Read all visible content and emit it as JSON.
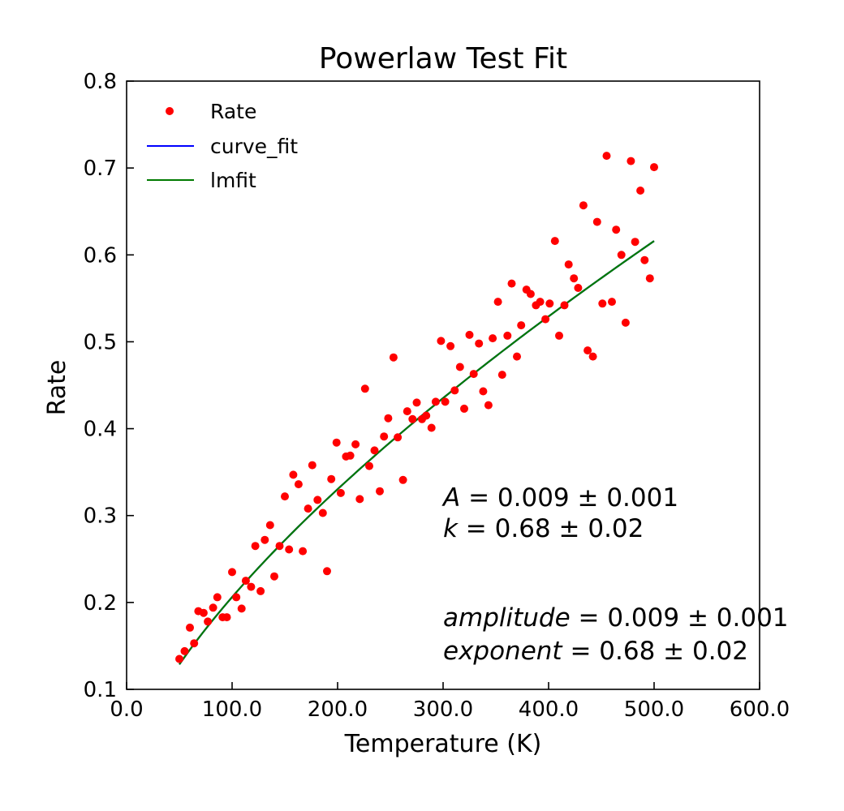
{
  "chart_data": {
    "type": "scatter",
    "title": "Powerlaw Test Fit",
    "xlabel": "Temperature (K)",
    "ylabel": "Rate",
    "xlim": [
      0,
      600
    ],
    "ylim": [
      0.1,
      0.8
    ],
    "grid": false,
    "legend_position": "top-left",
    "x_ticks": [
      "0.0",
      "100.0",
      "200.0",
      "300.0",
      "400.0",
      "500.0",
      "600.0"
    ],
    "y_ticks": [
      "0.1",
      "0.2",
      "0.3",
      "0.4",
      "0.5",
      "0.6",
      "0.7",
      "0.8"
    ],
    "legend": [
      "Rate",
      "curve_fit",
      "lmfit"
    ],
    "colors": {
      "points": "#ff0000",
      "curve_fit": "#0000ff",
      "lmfit": "#007a00"
    },
    "series": [
      {
        "name": "Rate",
        "kind": "points",
        "points": [
          [
            50,
            0.135
          ],
          [
            55,
            0.144
          ],
          [
            60,
            0.171
          ],
          [
            64,
            0.153
          ],
          [
            68,
            0.19
          ],
          [
            73,
            0.188
          ],
          [
            77,
            0.178
          ],
          [
            82,
            0.194
          ],
          [
            86,
            0.206
          ],
          [
            91,
            0.183
          ],
          [
            95,
            0.183
          ],
          [
            100,
            0.235
          ],
          [
            104,
            0.206
          ],
          [
            109,
            0.193
          ],
          [
            113,
            0.225
          ],
          [
            118,
            0.218
          ],
          [
            122,
            0.265
          ],
          [
            127,
            0.213
          ],
          [
            131,
            0.272
          ],
          [
            136,
            0.289
          ],
          [
            140,
            0.23
          ],
          [
            145,
            0.265
          ],
          [
            150,
            0.322
          ],
          [
            154,
            0.261
          ],
          [
            158,
            0.347
          ],
          [
            163,
            0.336
          ],
          [
            167,
            0.259
          ],
          [
            172,
            0.308
          ],
          [
            176,
            0.358
          ],
          [
            181,
            0.318
          ],
          [
            186,
            0.303
          ],
          [
            190,
            0.236
          ],
          [
            194,
            0.342
          ],
          [
            199,
            0.384
          ],
          [
            203,
            0.326
          ],
          [
            208,
            0.368
          ],
          [
            212,
            0.369
          ],
          [
            217,
            0.382
          ],
          [
            221,
            0.319
          ],
          [
            226,
            0.446
          ],
          [
            230,
            0.357
          ],
          [
            235,
            0.375
          ],
          [
            240,
            0.328
          ],
          [
            244,
            0.391
          ],
          [
            248,
            0.412
          ],
          [
            253,
            0.482
          ],
          [
            257,
            0.39
          ],
          [
            262,
            0.341
          ],
          [
            266,
            0.42
          ],
          [
            271,
            0.411
          ],
          [
            275,
            0.43
          ],
          [
            280,
            0.411
          ],
          [
            284,
            0.415
          ],
          [
            289,
            0.401
          ],
          [
            293,
            0.431
          ],
          [
            298,
            0.501
          ],
          [
            302,
            0.431
          ],
          [
            307,
            0.495
          ],
          [
            311,
            0.444
          ],
          [
            316,
            0.471
          ],
          [
            320,
            0.423
          ],
          [
            325,
            0.508
          ],
          [
            329,
            0.463
          ],
          [
            334,
            0.498
          ],
          [
            338,
            0.443
          ],
          [
            343,
            0.427
          ],
          [
            347,
            0.504
          ],
          [
            352,
            0.546
          ],
          [
            356,
            0.462
          ],
          [
            361,
            0.507
          ],
          [
            365,
            0.567
          ],
          [
            370,
            0.483
          ],
          [
            374,
            0.519
          ],
          [
            379,
            0.56
          ],
          [
            383,
            0.555
          ],
          [
            388,
            0.542
          ],
          [
            392,
            0.546
          ],
          [
            397,
            0.526
          ],
          [
            401,
            0.544
          ],
          [
            406,
            0.616
          ],
          [
            410,
            0.507
          ],
          [
            415,
            0.542
          ],
          [
            419,
            0.589
          ],
          [
            424,
            0.573
          ],
          [
            428,
            0.562
          ],
          [
            433,
            0.657
          ],
          [
            437,
            0.49
          ],
          [
            442,
            0.483
          ],
          [
            446,
            0.638
          ],
          [
            451,
            0.544
          ],
          [
            455,
            0.714
          ],
          [
            460,
            0.546
          ],
          [
            464,
            0.629
          ],
          [
            469,
            0.6
          ],
          [
            473,
            0.522
          ],
          [
            478,
            0.708
          ],
          [
            482,
            0.615
          ],
          [
            487,
            0.674
          ],
          [
            491,
            0.594
          ],
          [
            496,
            0.573
          ],
          [
            500,
            0.701
          ]
        ]
      },
      {
        "name": "curve_fit",
        "kind": "line",
        "A": 0.009,
        "k": 0.68,
        "x_range": [
          50,
          500
        ]
      },
      {
        "name": "lmfit",
        "kind": "line",
        "A": 0.009,
        "k": 0.68,
        "x_range": [
          50,
          500
        ]
      }
    ],
    "annotations": {
      "fit1_line1": {
        "name": "A",
        "value": " = 0.009 ± 0.001"
      },
      "fit1_line2": {
        "name": "k",
        "value": " = 0.68 ± 0.02"
      },
      "fit2_line1": {
        "name": "amplitude",
        "value": " = 0.009 ± 0.001"
      },
      "fit2_line2": {
        "name": "exponent",
        "value": " = 0.68 ± 0.02"
      }
    }
  }
}
